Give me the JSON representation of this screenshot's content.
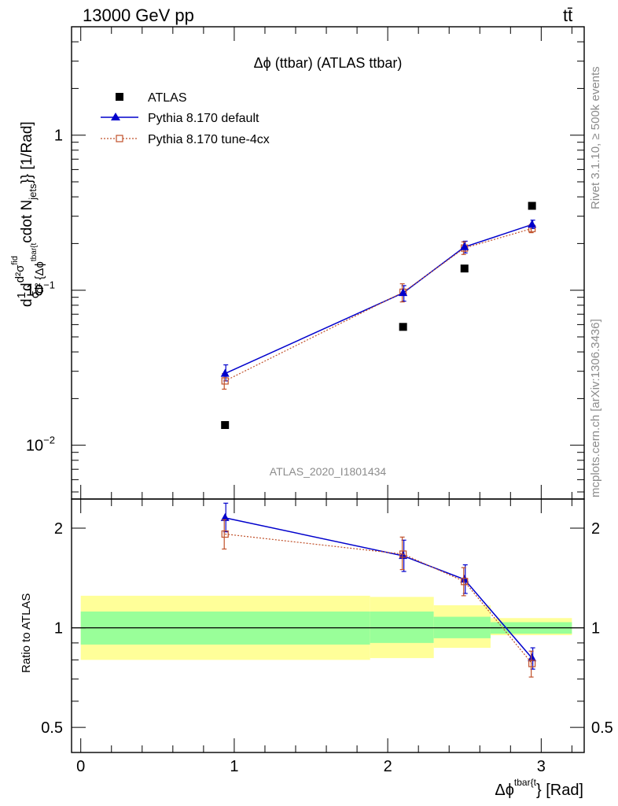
{
  "header": {
    "left": "13000 GeV pp",
    "right": "tt̄"
  },
  "side_labels": {
    "rivet": "Rivet 3.1.10, ≥ 500k events",
    "mcplots": "mcplots.cern.ch [arXiv:1306.3436]"
  },
  "colors": {
    "atlas": "#000000",
    "default": "#0000cc",
    "tune": "#c0502a",
    "band_inner": "#99ff99",
    "band_outer": "#ffff99"
  },
  "chart_data": [
    {
      "type": "scatter",
      "title": "Δϕ (ttbar) (ATLAS ttbar)",
      "watermark": "ATLAS_2020_I1801434",
      "ylabel": "d1dσ d d²σfid d² {Δϕ tbar{t cdot Njets}} [1/Rad]",
      "ylabel_parts": {
        "main": "d",
        "frac1_num": "1",
        "frac1_den": "σ",
        "mid": "d",
        "frac2_num": "d²σ",
        "frac2_num_sup": "fid",
        "frac2_den": "d² {Δϕ",
        "frac2_den_sup": "tbar{t",
        "tail": "cdot N",
        "tail_sub": "jets",
        "unit": "}} [1/Rad]"
      },
      "yscale": "log",
      "ylim": [
        0.0045,
        5.0
      ],
      "xlim": [
        -0.06,
        3.28
      ],
      "y_ticks": [
        {
          "v": 1,
          "label": "1"
        },
        {
          "v": 0.1,
          "label": "10",
          "sup": "−1"
        },
        {
          "v": 0.01,
          "label": "10",
          "sup": "−2"
        }
      ],
      "legend_position": "top-left",
      "series": [
        {
          "name": "ATLAS",
          "marker": "square",
          "x": [
            0.94,
            2.1,
            2.5,
            2.94
          ],
          "y": [
            0.0135,
            0.058,
            0.138,
            0.35
          ]
        },
        {
          "name": "Pythia 8.170 default",
          "marker": "triangle",
          "x": [
            0.94,
            2.1,
            2.5,
            2.94
          ],
          "y": [
            0.029,
            0.096,
            0.19,
            0.265
          ],
          "err_lo": [
            0.026,
            0.085,
            0.174,
            0.25
          ],
          "err_hi": [
            0.033,
            0.107,
            0.207,
            0.283
          ]
        },
        {
          "name": "Pythia 8.170 tune-4cx",
          "marker": "open-square",
          "x": [
            0.94,
            2.1,
            2.5,
            2.94
          ],
          "y": [
            0.026,
            0.097,
            0.187,
            0.25
          ],
          "err_lo": [
            0.023,
            0.084,
            0.17,
            0.235
          ],
          "err_hi": [
            0.029,
            0.11,
            0.205,
            0.265
          ]
        }
      ]
    },
    {
      "type": "scatter",
      "ylabel": "Ratio to ATLAS",
      "xlabel": "Δϕ",
      "xlabel_sup": "tbar{t",
      "xlabel_tail": "} [Rad]",
      "xlim": [
        -0.06,
        3.28
      ],
      "ylim": [
        0.42,
        2.45
      ],
      "x_ticks": [
        "0",
        "1",
        "2",
        "3"
      ],
      "y_ticks": [
        "0.5",
        "1",
        "2"
      ],
      "reference_line": 1.0,
      "uncertainty_bands": [
        {
          "x0": 0.0,
          "x1": 1.885,
          "inner": [
            0.89,
            1.12
          ],
          "outer": [
            0.8,
            1.25
          ]
        },
        {
          "x0": 1.885,
          "x1": 2.3,
          "inner": [
            0.9,
            1.12
          ],
          "outer": [
            0.81,
            1.24
          ]
        },
        {
          "x0": 2.3,
          "x1": 2.67,
          "inner": [
            0.93,
            1.08
          ],
          "outer": [
            0.87,
            1.17
          ]
        },
        {
          "x0": 2.67,
          "x1": 3.2,
          "inner": [
            0.96,
            1.04
          ],
          "outer": [
            0.95,
            1.07
          ]
        }
      ],
      "series": [
        {
          "name": "Pythia 8.170 default",
          "x": [
            0.94,
            2.1,
            2.5,
            2.94
          ],
          "y": [
            2.15,
            1.65,
            1.4,
            0.81
          ],
          "err_lo": [
            1.95,
            1.48,
            1.27,
            0.75
          ],
          "err_hi": [
            2.38,
            1.84,
            1.55,
            0.87
          ]
        },
        {
          "name": "Pythia 8.170 tune-4cx",
          "x": [
            0.94,
            2.1,
            2.5,
            2.94
          ],
          "y": [
            1.92,
            1.67,
            1.38,
            0.78
          ],
          "err_lo": [
            1.73,
            1.5,
            1.25,
            0.71
          ],
          "err_hi": [
            2.12,
            1.88,
            1.52,
            0.85
          ]
        }
      ]
    }
  ]
}
